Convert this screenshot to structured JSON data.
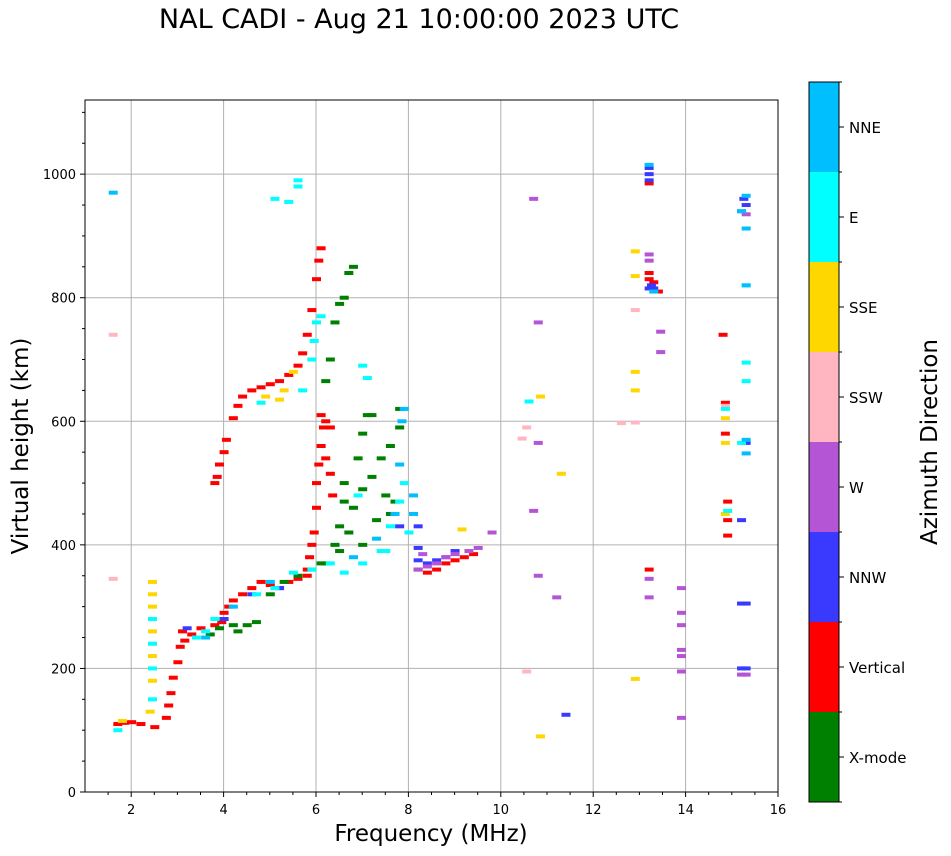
{
  "chart_data": {
    "type": "scatter",
    "title": "NAL CADI - Aug 21 10:00:00 2023 UTC",
    "xlabel": "Frequency (MHz)",
    "ylabel": "Virtual height (km)",
    "xlim": [
      1,
      16
    ],
    "ylim": [
      0,
      1120
    ],
    "xticks": [
      2,
      4,
      6,
      8,
      10,
      12,
      14,
      16
    ],
    "yticks": [
      0,
      200,
      400,
      600,
      800,
      1000
    ],
    "grid": true,
    "colorbar": {
      "label": "Azimuth Direction",
      "categories": [
        {
          "name": "X-mode",
          "color": "#008000"
        },
        {
          "name": "Vertical",
          "color": "#ff0000"
        },
        {
          "name": "NNW",
          "color": "#3a3aff"
        },
        {
          "name": "W",
          "color": "#b455d6"
        },
        {
          "name": "SSW",
          "color": "#ffb6c1"
        },
        {
          "name": "SSE",
          "color": "#ffd700"
        },
        {
          "name": "E",
          "color": "#00ffff"
        },
        {
          "name": "NNE",
          "color": "#00bfff"
        }
      ]
    },
    "series": [
      {
        "name": "Vertical",
        "points": [
          [
            1.7,
            110
          ],
          [
            1.85,
            112
          ],
          [
            2.0,
            113
          ],
          [
            2.2,
            110
          ],
          [
            2.5,
            105
          ],
          [
            2.75,
            120
          ],
          [
            2.8,
            140
          ],
          [
            2.85,
            160
          ],
          [
            2.9,
            185
          ],
          [
            3.0,
            210
          ],
          [
            3.05,
            235
          ],
          [
            3.1,
            260
          ],
          [
            3.15,
            245
          ],
          [
            3.3,
            255
          ],
          [
            3.5,
            265
          ],
          [
            3.8,
            270
          ],
          [
            3.95,
            275
          ],
          [
            4.0,
            290
          ],
          [
            4.1,
            300
          ],
          [
            4.2,
            310
          ],
          [
            4.4,
            320
          ],
          [
            4.6,
            330
          ],
          [
            4.8,
            340
          ],
          [
            5.0,
            335
          ],
          [
            5.2,
            330
          ],
          [
            5.4,
            340
          ],
          [
            5.6,
            345
          ],
          [
            5.8,
            350
          ],
          [
            3.8,
            500
          ],
          [
            3.85,
            510
          ],
          [
            3.9,
            530
          ],
          [
            4.0,
            550
          ],
          [
            4.05,
            570
          ],
          [
            4.2,
            605
          ],
          [
            4.3,
            625
          ],
          [
            4.4,
            640
          ],
          [
            4.6,
            650
          ],
          [
            4.8,
            655
          ],
          [
            5.0,
            660
          ],
          [
            5.2,
            665
          ],
          [
            5.4,
            675
          ],
          [
            5.6,
            690
          ],
          [
            5.7,
            710
          ],
          [
            5.8,
            740
          ],
          [
            5.9,
            780
          ],
          [
            6.0,
            830
          ],
          [
            6.05,
            860
          ],
          [
            6.1,
            880
          ],
          [
            5.8,
            360
          ],
          [
            5.85,
            380
          ],
          [
            5.9,
            400
          ],
          [
            5.95,
            420
          ],
          [
            6.0,
            460
          ],
          [
            6.0,
            500
          ],
          [
            6.05,
            530
          ],
          [
            6.1,
            560
          ],
          [
            6.15,
            590
          ],
          [
            6.2,
            600
          ],
          [
            6.3,
            590
          ],
          [
            6.1,
            610
          ],
          [
            6.2,
            540
          ],
          [
            6.3,
            515
          ],
          [
            6.35,
            480
          ],
          [
            8.2,
            360
          ],
          [
            8.4,
            355
          ],
          [
            8.6,
            360
          ],
          [
            8.8,
            370
          ],
          [
            9.0,
            375
          ],
          [
            9.2,
            380
          ],
          [
            9.4,
            385
          ],
          [
            13.2,
            360
          ],
          [
            13.2,
            830
          ],
          [
            13.2,
            840
          ],
          [
            13.2,
            985
          ],
          [
            14.8,
            740
          ],
          [
            14.85,
            630
          ],
          [
            14.85,
            580
          ],
          [
            14.9,
            470
          ],
          [
            14.9,
            440
          ],
          [
            14.9,
            415
          ],
          [
            13.3,
            825
          ],
          [
            13.4,
            810
          ]
        ]
      },
      {
        "name": "X-mode",
        "points": [
          [
            3.7,
            255
          ],
          [
            3.9,
            265
          ],
          [
            4.2,
            270
          ],
          [
            4.3,
            260
          ],
          [
            4.5,
            270
          ],
          [
            4.7,
            275
          ],
          [
            5.0,
            320
          ],
          [
            5.3,
            340
          ],
          [
            5.6,
            350
          ],
          [
            5.9,
            360
          ],
          [
            6.2,
            370
          ],
          [
            6.5,
            390
          ],
          [
            6.7,
            420
          ],
          [
            6.8,
            460
          ],
          [
            7.0,
            490
          ],
          [
            7.2,
            510
          ],
          [
            7.4,
            540
          ],
          [
            7.6,
            560
          ],
          [
            7.8,
            590
          ],
          [
            7.8,
            620
          ],
          [
            6.5,
            430
          ],
          [
            6.6,
            470
          ],
          [
            6.6,
            500
          ],
          [
            6.9,
            540
          ],
          [
            7.0,
            580
          ],
          [
            7.1,
            610
          ],
          [
            6.1,
            370
          ],
          [
            6.4,
            400
          ],
          [
            7.3,
            440
          ],
          [
            7.5,
            480
          ],
          [
            6.2,
            665
          ],
          [
            6.3,
            700
          ],
          [
            6.4,
            760
          ],
          [
            6.5,
            790
          ],
          [
            6.6,
            800
          ],
          [
            6.7,
            840
          ],
          [
            6.8,
            850
          ],
          [
            7.2,
            610
          ],
          [
            7.0,
            400
          ],
          [
            7.6,
            450
          ],
          [
            7.7,
            470
          ]
        ]
      },
      {
        "name": "NNW",
        "points": [
          [
            3.2,
            265
          ],
          [
            4.0,
            280
          ],
          [
            4.6,
            320
          ],
          [
            5.2,
            330
          ],
          [
            8.2,
            375
          ],
          [
            8.4,
            370
          ],
          [
            8.6,
            375
          ],
          [
            8.8,
            380
          ],
          [
            7.8,
            430
          ],
          [
            8.2,
            430
          ],
          [
            8.2,
            395
          ],
          [
            9.0,
            390
          ],
          [
            13.2,
            1000
          ],
          [
            13.2,
            1010
          ],
          [
            13.2,
            990
          ],
          [
            13.25,
            820
          ],
          [
            13.2,
            815
          ],
          [
            15.2,
            305
          ],
          [
            15.3,
            305
          ],
          [
            15.2,
            200
          ],
          [
            15.3,
            200
          ],
          [
            15.2,
            440
          ],
          [
            15.3,
            565
          ],
          [
            11.4,
            125
          ],
          [
            15.25,
            960
          ],
          [
            15.3,
            950
          ],
          [
            13.3,
            815
          ]
        ]
      },
      {
        "name": "W",
        "points": [
          [
            8.2,
            360
          ],
          [
            8.4,
            365
          ],
          [
            8.6,
            370
          ],
          [
            8.8,
            380
          ],
          [
            9.0,
            385
          ],
          [
            9.3,
            390
          ],
          [
            9.5,
            395
          ],
          [
            8.3,
            385
          ],
          [
            13.2,
            860
          ],
          [
            13.2,
            870
          ],
          [
            13.45,
            745
          ],
          [
            13.45,
            712
          ],
          [
            13.2,
            315
          ],
          [
            13.2,
            345
          ],
          [
            13.9,
            230
          ],
          [
            13.9,
            220
          ],
          [
            13.9,
            195
          ],
          [
            13.9,
            290
          ],
          [
            13.9,
            270
          ],
          [
            13.9,
            330
          ],
          [
            13.9,
            120
          ],
          [
            15.2,
            190
          ],
          [
            15.3,
            190
          ],
          [
            10.8,
            350
          ],
          [
            11.2,
            315
          ],
          [
            10.8,
            565
          ],
          [
            10.8,
            760
          ],
          [
            10.7,
            455
          ],
          [
            10.7,
            960
          ],
          [
            9.8,
            420
          ],
          [
            15.2,
            940
          ],
          [
            15.3,
            935
          ]
        ]
      },
      {
        "name": "SSW",
        "points": [
          [
            1.6,
            345
          ],
          [
            1.6,
            740
          ],
          [
            10.55,
            195
          ],
          [
            10.45,
            572
          ],
          [
            10.55,
            590
          ],
          [
            12.6,
            597
          ],
          [
            12.9,
            780
          ],
          [
            12.9,
            598
          ],
          [
            14.85,
            625
          ]
        ]
      },
      {
        "name": "SSE",
        "points": [
          [
            1.8,
            115
          ],
          [
            2.4,
            130
          ],
          [
            2.45,
            180
          ],
          [
            2.45,
            220
          ],
          [
            2.45,
            260
          ],
          [
            2.45,
            300
          ],
          [
            2.45,
            320
          ],
          [
            2.45,
            340
          ],
          [
            4.9,
            640
          ],
          [
            5.2,
            635
          ],
          [
            5.3,
            650
          ],
          [
            5.5,
            680
          ],
          [
            9.15,
            425
          ],
          [
            10.85,
            90
          ],
          [
            10.85,
            640
          ],
          [
            11.3,
            515
          ],
          [
            12.9,
            875
          ],
          [
            12.9,
            835
          ],
          [
            12.9,
            680
          ],
          [
            12.9,
            650
          ],
          [
            12.9,
            183
          ],
          [
            14.85,
            605
          ],
          [
            14.85,
            565
          ],
          [
            14.85,
            450
          ]
        ]
      },
      {
        "name": "E",
        "points": [
          [
            1.7,
            100
          ],
          [
            2.45,
            150
          ],
          [
            2.45,
            200
          ],
          [
            2.45,
            240
          ],
          [
            2.45,
            280
          ],
          [
            3.4,
            250
          ],
          [
            3.6,
            260
          ],
          [
            3.8,
            280
          ],
          [
            4.7,
            320
          ],
          [
            5.1,
            330
          ],
          [
            5.5,
            355
          ],
          [
            5.9,
            360
          ],
          [
            6.3,
            370
          ],
          [
            6.6,
            355
          ],
          [
            7.0,
            370
          ],
          [
            7.4,
            390
          ],
          [
            7.6,
            430
          ],
          [
            7.8,
            470
          ],
          [
            7.9,
            500
          ],
          [
            6.9,
            480
          ],
          [
            5.7,
            650
          ],
          [
            5.9,
            700
          ],
          [
            5.95,
            730
          ],
          [
            6.0,
            760
          ],
          [
            6.1,
            770
          ],
          [
            4.8,
            630
          ],
          [
            5.6,
            990
          ],
          [
            5.4,
            955
          ],
          [
            5.1,
            960
          ],
          [
            5.6,
            980
          ],
          [
            10.6,
            632
          ],
          [
            14.9,
            455
          ],
          [
            14.85,
            620
          ],
          [
            15.3,
            665
          ],
          [
            15.3,
            695
          ],
          [
            15.2,
            565
          ],
          [
            15.3,
            820
          ],
          [
            7.0,
            690
          ],
          [
            7.1,
            670
          ],
          [
            7.5,
            390
          ],
          [
            8.0,
            420
          ]
        ]
      },
      {
        "name": "NNE",
        "points": [
          [
            1.6,
            970
          ],
          [
            3.6,
            250
          ],
          [
            4.2,
            300
          ],
          [
            5.0,
            340
          ],
          [
            6.8,
            380
          ],
          [
            7.3,
            410
          ],
          [
            7.7,
            450
          ],
          [
            7.8,
            530
          ],
          [
            7.85,
            600
          ],
          [
            7.9,
            620
          ],
          [
            8.1,
            480
          ],
          [
            8.1,
            450
          ],
          [
            15.3,
            548
          ],
          [
            15.3,
            912
          ],
          [
            15.3,
            965
          ],
          [
            15.3,
            820
          ],
          [
            15.3,
            570
          ],
          [
            15.2,
            940
          ],
          [
            13.2,
            1015
          ],
          [
            13.3,
            810
          ]
        ]
      }
    ]
  }
}
